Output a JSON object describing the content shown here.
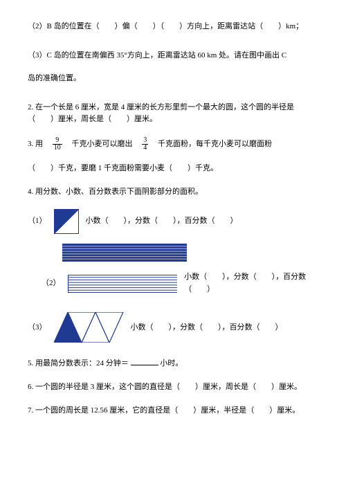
{
  "colors": {
    "fill": "#1f3a93",
    "stroke": "#1f3a93",
    "text": "#000000",
    "bg": "#ffffff",
    "stripe_gap": "#bcbcbc"
  },
  "q1_2": "（2）B 岛的位置在（　　）偏（　　）（　　）方向上，距离雷达站（　　）km；",
  "q1_3a": "（3）C 岛的位置在南偏西 35°方向上，距离雷达站 60 km 处。请在图中画出 C",
  "q1_3b": "岛的准确位置。",
  "q2a": "2. 在一个长是 6 厘米，宽是 4 厘米的长方形里剪一个最大的圆，这个圆的半径是（　　）厘米，周长是（　　）厘米。",
  "q3_pre": "3. 用　",
  "q3_f1_num": "9",
  "q3_f1_den": "10",
  "q3_mid1": "　千克小麦可以磨出　",
  "q3_f2_num": "3",
  "q3_f2_den": "4",
  "q3_mid2": "　千克面粉，每千克小麦可以磨面粉",
  "q3_line2": "（　　）千克，要磨 1 千克面粉需要小麦（　　）千克。",
  "q4_title": "4. 用分数、小数、百分数表示下面阴影部分的面积。",
  "q4_1_label": "（1）",
  "q4_1_text": "小数（　　），分数（　　），百分数（　　）",
  "q4_2_label": "（2）",
  "q4_2_text": "小数（　　），分数（　　），百分数（　　）",
  "q4_3_label": "（3）",
  "q4_3_text": "小数（　　），分数（　　），百分数（　　）",
  "q5_pre": "5. 用最简分数表示：24 分钟＝",
  "q5_post": "小时。",
  "q6": "6. 一个圆的半径是 3 厘米，这个圆的直径是（　　）厘米，周长是（　　）厘米。",
  "q7": "7. 一个圆的周长是 12.56 厘米，它的直径是（　　）厘米，半径是（　　）厘米。",
  "fig1": {
    "size": 36,
    "filled": "top-left-triangle"
  },
  "fig2": {
    "width": 180,
    "height": 26,
    "bar_gap": 10,
    "stripes": 7,
    "filled_ratio": 0.5
  },
  "fig3": {
    "tri_w": 40,
    "tri_h": 44,
    "count": 4,
    "filled_index": 0
  }
}
